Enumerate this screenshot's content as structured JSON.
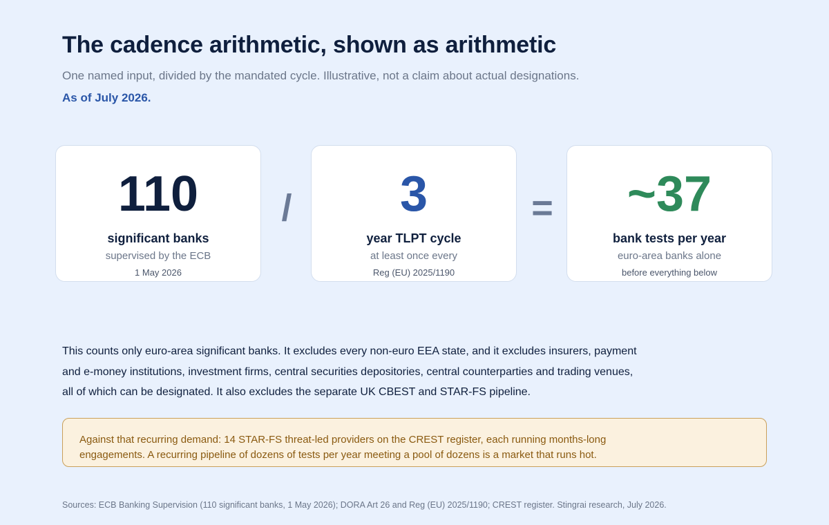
{
  "header": {
    "title": "The cadence arithmetic, shown as arithmetic",
    "subtitle": "One named input, divided by the mandated cycle. Illustrative, not a claim about actual designations.",
    "as_of": "As of July 2026."
  },
  "cards": [
    {
      "value": "110",
      "label": "significant banks",
      "sub": "supervised by the ECB",
      "note": "1 May 2026",
      "color": "#0f1f3d"
    },
    {
      "value": "3",
      "label": "year TLPT cycle",
      "sub": "at least once every",
      "note": "Reg (EU) 2025/1190",
      "color": "#2a56a8"
    },
    {
      "value": "~37",
      "label": "bank tests per year",
      "sub": "euro-area banks alone",
      "note": "before everything below",
      "color": "#2e8a5a"
    }
  ],
  "operators": {
    "divide": "/",
    "equals": "="
  },
  "body": {
    "text": "This counts only euro-area significant banks. It excludes every non-euro EEA state, and it excludes insurers, payment and e-money institutions, investment firms, central securities depositories, central counterparties and trading venues, all of which can be designated. It also excludes the separate UK CBEST and STAR-FS pipeline."
  },
  "callout": {
    "text": "Against that recurring demand: 14 STAR-FS threat-led providers on the CREST register, each running months-long engagements. A recurring pipeline of dozens of tests per year meeting a pool of dozens is a market that runs hot."
  },
  "sources": "Sources: ECB Banking Supervision (110 significant banks, 1 May 2026); DORA Art 26 and Reg (EU) 2025/1190; CREST register. Stingrai research, July 2026."
}
